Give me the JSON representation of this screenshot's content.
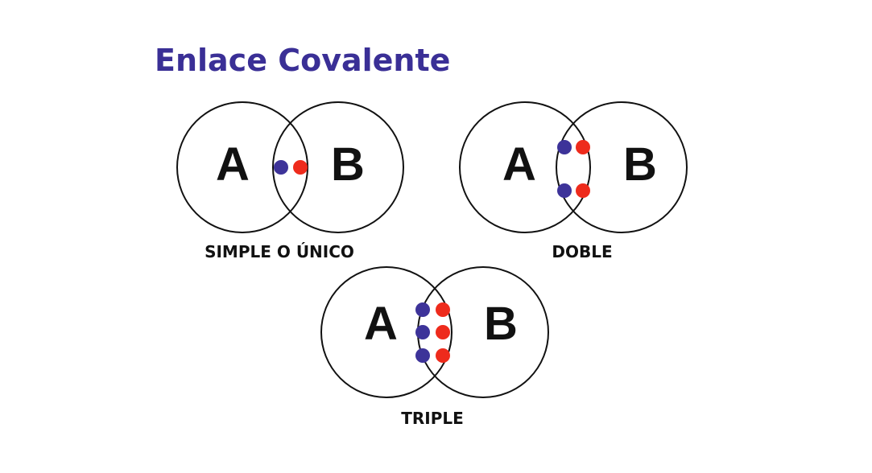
{
  "title": "Enlace Covalente",
  "colors": {
    "title": "#3a2f96",
    "outline": "#111111",
    "text": "#111111",
    "electron_a": "#3d3399",
    "electron_b": "#ee2b1c"
  },
  "diagrams": [
    {
      "atom_a": "A",
      "atom_b": "B",
      "caption": "SIMPLE O ÚNICO",
      "shared_pairs": 1
    },
    {
      "atom_a": "A",
      "atom_b": "B",
      "caption": "DOBLE",
      "shared_pairs": 2
    },
    {
      "atom_a": "A",
      "atom_b": "B",
      "caption": "TRIPLE",
      "shared_pairs": 3
    }
  ]
}
